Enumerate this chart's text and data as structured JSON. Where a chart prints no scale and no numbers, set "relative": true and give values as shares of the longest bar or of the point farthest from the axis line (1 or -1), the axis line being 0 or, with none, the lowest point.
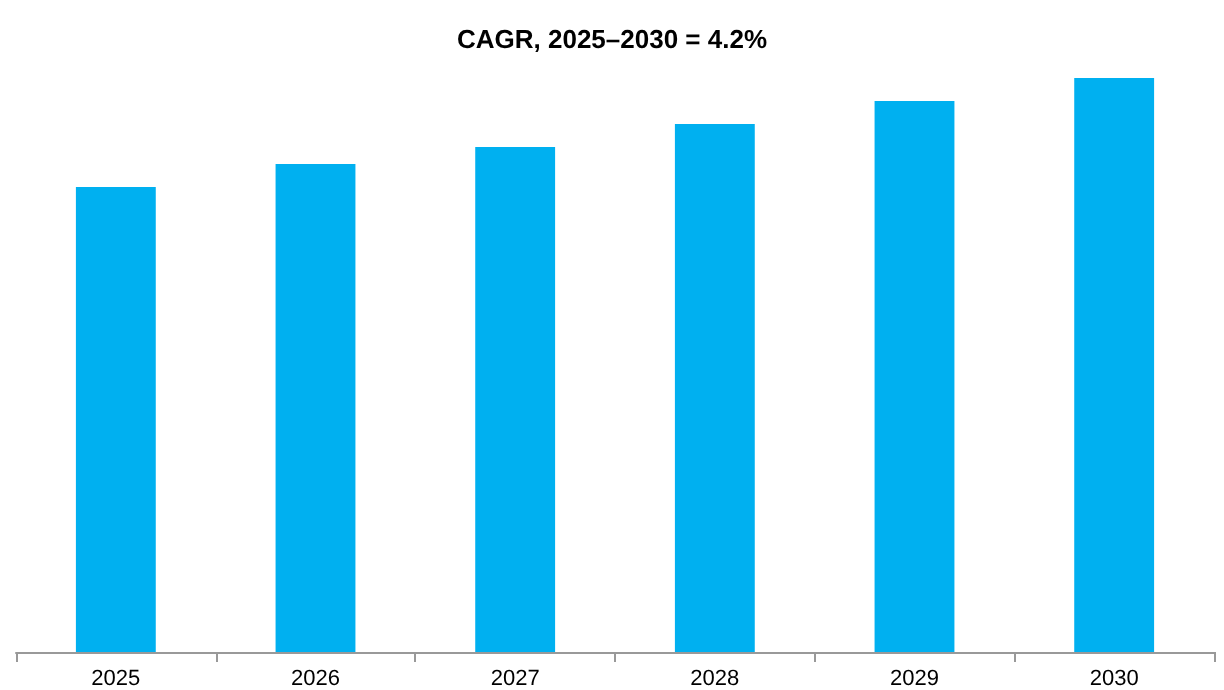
{
  "chart_data": {
    "type": "bar",
    "title": "CAGR, 2025–2030 = 4.2%",
    "categories": [
      "2025",
      "2026",
      "2027",
      "2028",
      "2029",
      "2030"
    ],
    "values": [
      0.81,
      0.85,
      0.88,
      0.92,
      0.96,
      1
    ],
    "color": "#00b0f0",
    "relative": true
  }
}
